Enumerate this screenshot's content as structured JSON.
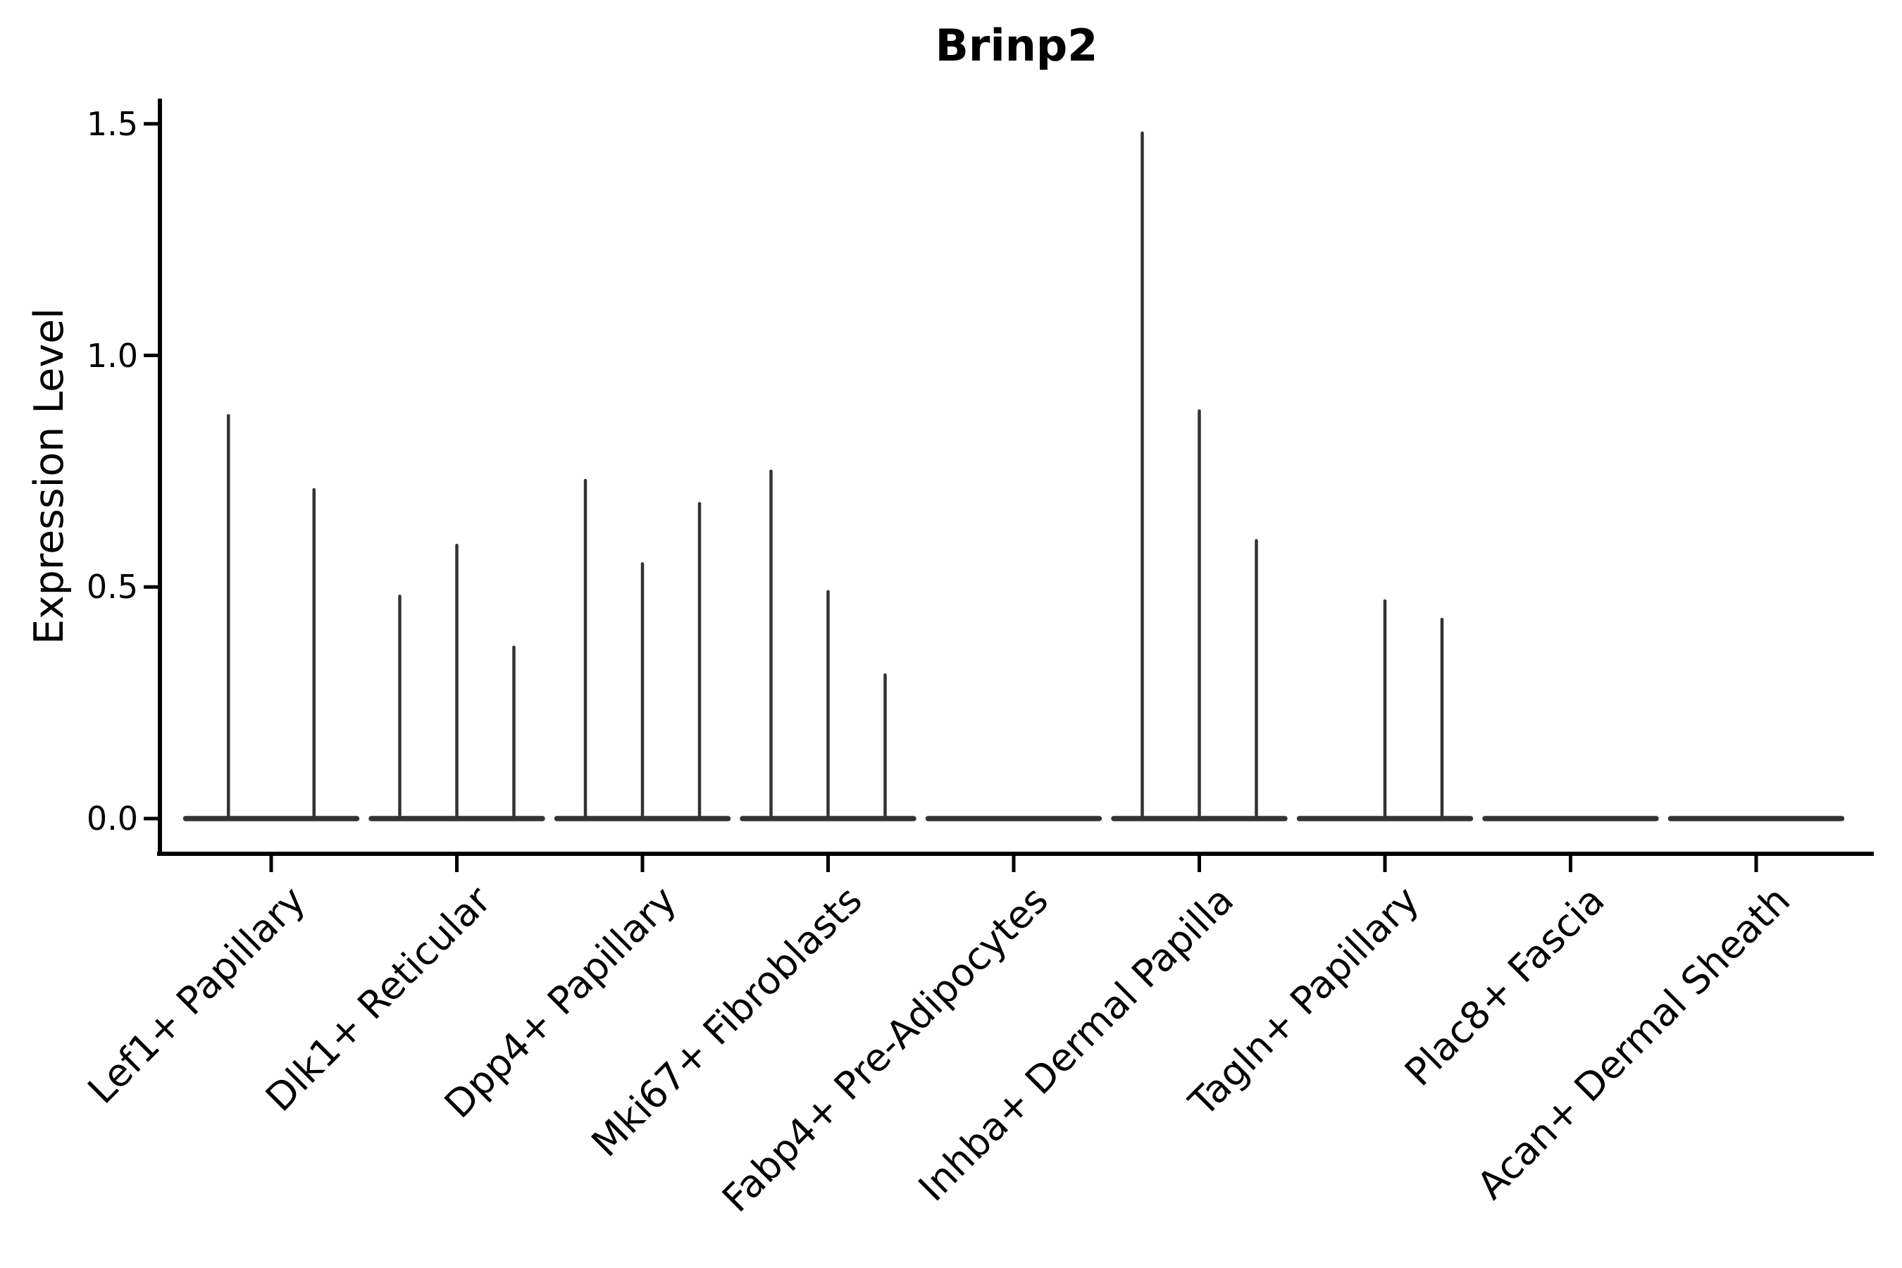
{
  "chart_data": {
    "type": "violin",
    "title": "Brinp2",
    "ylabel": "Expression Level",
    "xlabel": "",
    "yticks": [
      0.0,
      0.5,
      1.0,
      1.5
    ],
    "ylim": [
      -0.08,
      1.55
    ],
    "grid": false,
    "legend": null,
    "note": "Each category holds 2-3 narrow violins (one per sample); peak = max expression, 0 = flat violin at baseline",
    "groups": [
      {
        "category": "Lef1+ Papillary",
        "violin_peaks": [
          0.87,
          0.71
        ]
      },
      {
        "category": "Dlk1+ Reticular",
        "violin_peaks": [
          0.48,
          0.59,
          0.37
        ]
      },
      {
        "category": "Dpp4+ Papillary",
        "violin_peaks": [
          0.73,
          0.55,
          0.68
        ]
      },
      {
        "category": "Mki67+ Fibroblasts",
        "violin_peaks": [
          0.75,
          0.49,
          0.31
        ]
      },
      {
        "category": "Fabp4+ Pre-Adipocytes",
        "violin_peaks": [
          0,
          0,
          0
        ]
      },
      {
        "category": "Inhba+ Dermal Papilla",
        "violin_peaks": [
          1.48,
          0.88,
          0.6
        ]
      },
      {
        "category": "Tagln+ Papillary",
        "violin_peaks": [
          0,
          0.47,
          0.43
        ]
      },
      {
        "category": "Plac8+ Fascia",
        "violin_peaks": [
          0,
          0,
          0
        ]
      },
      {
        "category": "Acan+ Dermal Sheath",
        "violin_peaks": [
          0,
          0,
          0
        ]
      }
    ],
    "colors": {
      "violin": "#333333",
      "axis": "#000000",
      "text": "#000000",
      "background": "#ffffff"
    }
  }
}
